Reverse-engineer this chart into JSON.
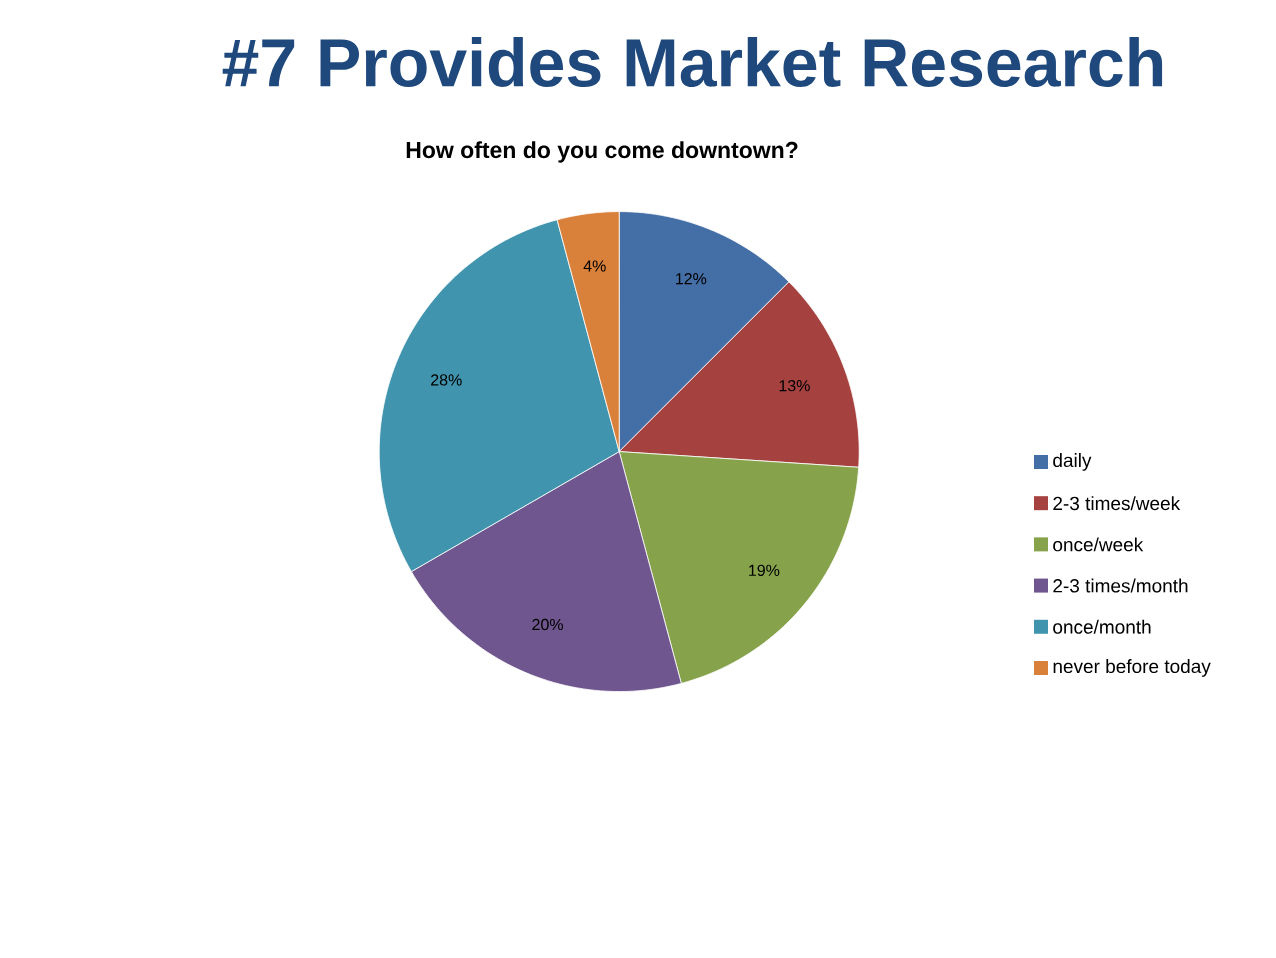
{
  "chart_data": {
    "type": "pie",
    "title": "#7  Provides Market Research",
    "subtitle": "How often do you come downtown?",
    "categories": [
      "daily",
      "2-3 times/week",
      "once/week",
      "2-3 times/month",
      "once/month",
      "never before today"
    ],
    "values": [
      12,
      13,
      19,
      20,
      28,
      4
    ],
    "value_labels": [
      "12%",
      "13%",
      "19%",
      "20%",
      "28%",
      "4%"
    ],
    "colors": [
      "#446ea6",
      "#a5423f",
      "#86a34b",
      "#70568e",
      "#4094ad",
      "#d9803b"
    ],
    "legend": "right"
  }
}
